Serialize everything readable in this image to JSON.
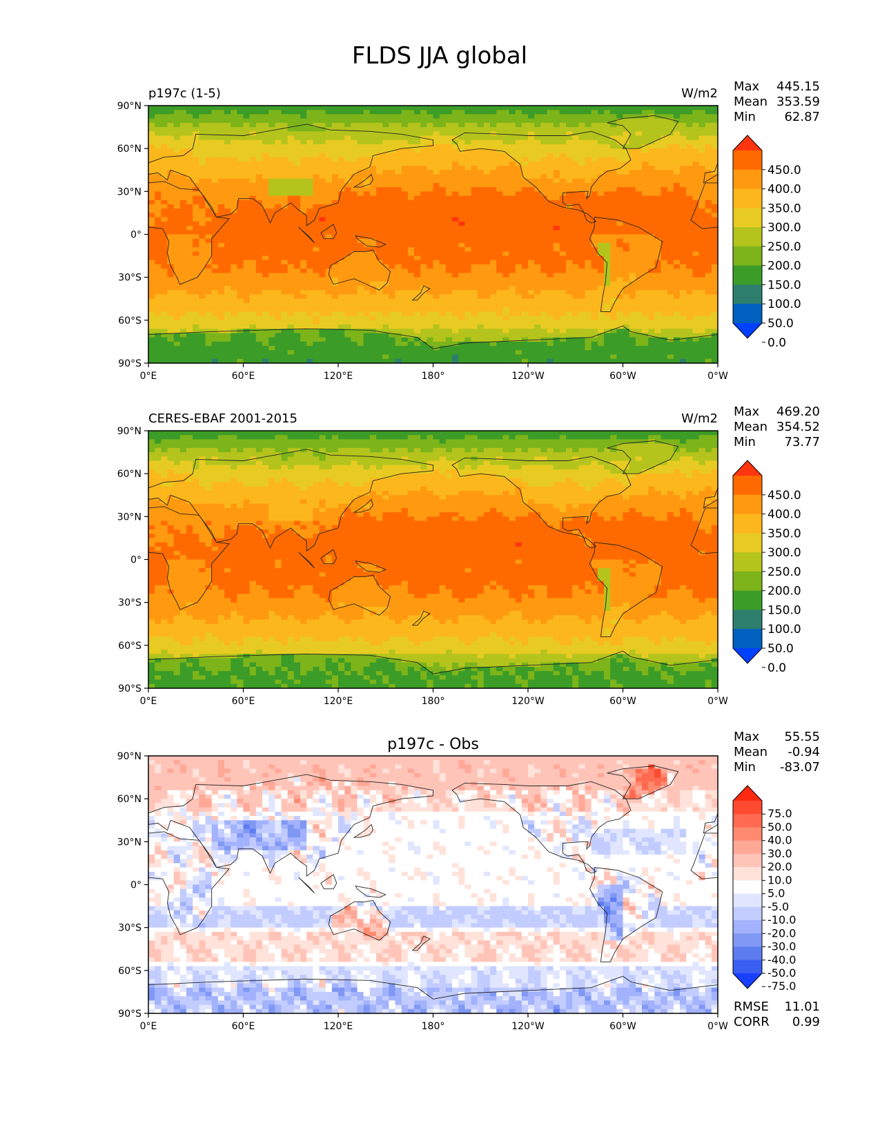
{
  "figure": {
    "title": "FLDS JJA global"
  },
  "axes": {
    "lat_ticks": [
      "90°N",
      "60°N",
      "30°N",
      "0°",
      "30°S",
      "60°S",
      "90°S"
    ],
    "lon_ticks": [
      "0°E",
      "60°E",
      "120°E",
      "180°",
      "120°W",
      "60°W",
      "0°W"
    ]
  },
  "chart_data": [
    {
      "type": "heatmap",
      "title_left": "p197c (1-5)",
      "title_center": "",
      "units": "W/m2",
      "stats": [
        {
          "label": "Max",
          "value": "445.15"
        },
        {
          "label": "Mean",
          "value": "353.59"
        },
        {
          "label": "Min",
          "value": "62.87"
        }
      ],
      "colorbar": {
        "labels": [
          "450.0",
          "400.0",
          "350.0",
          "300.0",
          "250.0",
          "200.0",
          "150.0",
          "100.0",
          "50.0",
          "0.0"
        ],
        "colors": [
          "#ff3510",
          "#ff6a00",
          "#ff9a10",
          "#fcb71c",
          "#e8cb22",
          "#b4c41c",
          "#7cb41a",
          "#3c9c28",
          "#2e7e6e",
          "#0060c0",
          "#0040ff"
        ],
        "extend": "both"
      }
    },
    {
      "type": "heatmap",
      "title_left": "CERES-EBAF 2001-2015",
      "title_center": "",
      "units": "W/m2",
      "stats": [
        {
          "label": "Max",
          "value": "469.20"
        },
        {
          "label": "Mean",
          "value": "354.52"
        },
        {
          "label": "Min",
          "value": "73.77"
        }
      ],
      "colorbar": {
        "labels": [
          "450.0",
          "400.0",
          "350.0",
          "300.0",
          "250.0",
          "200.0",
          "150.0",
          "100.0",
          "50.0",
          "0.0"
        ],
        "colors": [
          "#ff3510",
          "#ff6a00",
          "#ff9a10",
          "#fcb71c",
          "#e8cb22",
          "#b4c41c",
          "#7cb41a",
          "#3c9c28",
          "#2e7e6e",
          "#0060c0",
          "#0040ff"
        ],
        "extend": "both"
      }
    },
    {
      "type": "heatmap",
      "title_left": "",
      "title_center": "p197c - Obs",
      "units": "",
      "stats": [
        {
          "label": "Max",
          "value": "55.55"
        },
        {
          "label": "Mean",
          "value": "-0.94"
        },
        {
          "label": "Min",
          "value": "-83.07"
        }
      ],
      "metrics": [
        {
          "label": "RMSE",
          "value": "11.01"
        },
        {
          "label": "CORR",
          "value": "0.99"
        }
      ],
      "colorbar": {
        "labels": [
          "75.0",
          "50.0",
          "40.0",
          "30.0",
          "20.0",
          "10.0",
          "5.0",
          "-5.0",
          "-10.0",
          "-20.0",
          "-30.0",
          "-40.0",
          "-50.0",
          "-75.0"
        ],
        "colors": [
          "#ff2a10",
          "#ff4a30",
          "#ff6a50",
          "#ff8a70",
          "#ffa898",
          "#ffc4b8",
          "#ffe2da",
          "#ffffff",
          "#e0e6ff",
          "#c2ccff",
          "#a2b2fc",
          "#8098f4",
          "#5c7cf0",
          "#3a5ef0",
          "#1840ff"
        ],
        "extend": "both"
      }
    }
  ]
}
